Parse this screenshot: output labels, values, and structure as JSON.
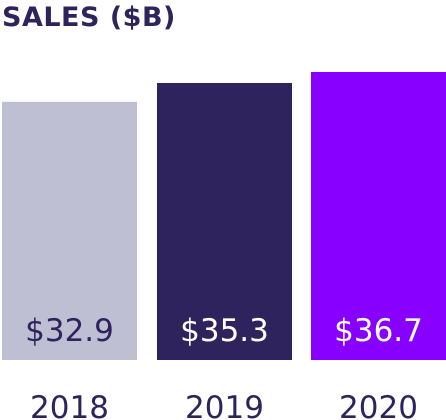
{
  "chart_data": {
    "type": "bar",
    "title": "SALES ($B)",
    "categories": [
      "2018",
      "2019",
      "2020"
    ],
    "values": [
      32.9,
      35.3,
      36.7
    ],
    "value_labels": [
      "$32.9",
      "$35.3",
      "$36.7"
    ],
    "bar_colors": [
      "#bfbfd4",
      "#2e235c",
      "#8800ff"
    ],
    "label_colors": [
      "#2e235c",
      "#ffffff",
      "#ffffff"
    ],
    "category_label_color": "#2e235c",
    "grid": false,
    "legend": "none"
  }
}
